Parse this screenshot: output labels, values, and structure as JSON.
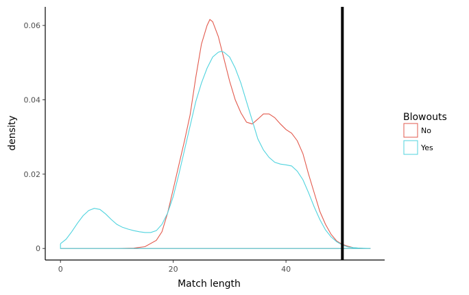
{
  "chart_data": {
    "type": "area",
    "xlabel": "Match length",
    "ylabel": "density",
    "x_ticks": [
      0,
      20,
      40
    ],
    "y_ticks": [
      0,
      0.02,
      0.04,
      0.06
    ],
    "y_tick_labels": [
      "0",
      "0.02",
      "0.04",
      "0.06"
    ],
    "xlim": [
      -2.7,
      57.5
    ],
    "ylim": [
      -0.0031,
      0.065
    ],
    "grid": false,
    "legend_position": "right",
    "legend_title": "Blowouts",
    "vline": {
      "x": 50,
      "color": "#000000"
    },
    "series": [
      {
        "name": "No",
        "color": "#e2594c",
        "points": [
          [
            0,
            0
          ],
          [
            5,
            0
          ],
          [
            10,
            0
          ],
          [
            13,
            0.0001
          ],
          [
            15,
            0.0005
          ],
          [
            17,
            0.0022
          ],
          [
            18,
            0.0045
          ],
          [
            19,
            0.0095
          ],
          [
            20,
            0.016
          ],
          [
            21,
            0.0225
          ],
          [
            22,
            0.029
          ],
          [
            23,
            0.036
          ],
          [
            24,
            0.046
          ],
          [
            25,
            0.055
          ],
          [
            26,
            0.06
          ],
          [
            26.5,
            0.0616
          ],
          [
            27,
            0.061
          ],
          [
            28,
            0.057
          ],
          [
            29,
            0.051
          ],
          [
            30,
            0.045
          ],
          [
            31,
            0.04
          ],
          [
            32,
            0.0365
          ],
          [
            33,
            0.034
          ],
          [
            34,
            0.0335
          ],
          [
            35,
            0.0348
          ],
          [
            36,
            0.0362
          ],
          [
            37,
            0.0362
          ],
          [
            38,
            0.0352
          ],
          [
            39,
            0.0335
          ],
          [
            40,
            0.032
          ],
          [
            41,
            0.031
          ],
          [
            42,
            0.029
          ],
          [
            43,
            0.0255
          ],
          [
            44,
            0.02
          ],
          [
            45,
            0.015
          ],
          [
            46,
            0.01
          ],
          [
            47,
            0.0065
          ],
          [
            48,
            0.0038
          ],
          [
            49,
            0.002
          ],
          [
            50,
            0.0011
          ],
          [
            51,
            0.0006
          ],
          [
            52,
            0.0002
          ],
          [
            53,
            0.0001
          ],
          [
            54,
            0
          ],
          [
            55,
            0
          ],
          [
            0,
            0
          ]
        ]
      },
      {
        "name": "Yes",
        "color": "#4fd3de",
        "points": [
          [
            0,
            0.0013
          ],
          [
            1,
            0.0025
          ],
          [
            2,
            0.0045
          ],
          [
            3,
            0.0068
          ],
          [
            4,
            0.0088
          ],
          [
            5,
            0.0102
          ],
          [
            6,
            0.0108
          ],
          [
            7,
            0.0105
          ],
          [
            8,
            0.0093
          ],
          [
            9,
            0.0078
          ],
          [
            10,
            0.0065
          ],
          [
            11,
            0.0057
          ],
          [
            12,
            0.0052
          ],
          [
            13,
            0.0048
          ],
          [
            14,
            0.0045
          ],
          [
            15,
            0.0043
          ],
          [
            16,
            0.0043
          ],
          [
            17,
            0.0048
          ],
          [
            18,
            0.0065
          ],
          [
            19,
            0.0095
          ],
          [
            20,
            0.014
          ],
          [
            21,
            0.02
          ],
          [
            22,
            0.0265
          ],
          [
            23,
            0.033
          ],
          [
            24,
            0.0395
          ],
          [
            25,
            0.0445
          ],
          [
            26,
            0.0485
          ],
          [
            27,
            0.0515
          ],
          [
            28,
            0.0528
          ],
          [
            28.5,
            0.053
          ],
          [
            29,
            0.0528
          ],
          [
            30,
            0.0515
          ],
          [
            31,
            0.0485
          ],
          [
            32,
            0.0445
          ],
          [
            33,
            0.0395
          ],
          [
            34,
            0.0345
          ],
          [
            35,
            0.0295
          ],
          [
            36,
            0.0265
          ],
          [
            37,
            0.0245
          ],
          [
            38,
            0.0232
          ],
          [
            39,
            0.0227
          ],
          [
            40,
            0.0225
          ],
          [
            41,
            0.0222
          ],
          [
            42,
            0.0208
          ],
          [
            43,
            0.0185
          ],
          [
            44,
            0.015
          ],
          [
            45,
            0.0112
          ],
          [
            46,
            0.0078
          ],
          [
            47,
            0.005
          ],
          [
            48,
            0.0031
          ],
          [
            49,
            0.0018
          ],
          [
            50,
            0.0009
          ],
          [
            51,
            0.0004
          ],
          [
            52,
            0.0002
          ],
          [
            53,
            0.0001
          ],
          [
            55,
            0
          ],
          [
            0,
            0
          ],
          [
            0,
            0.0013
          ]
        ]
      }
    ]
  }
}
